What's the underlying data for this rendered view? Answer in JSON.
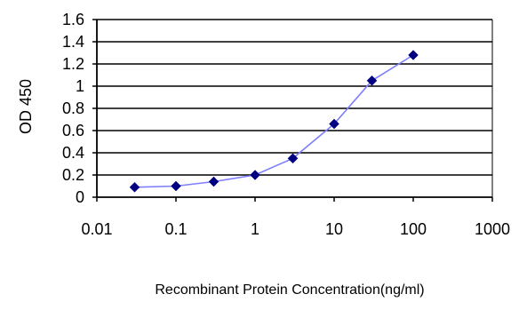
{
  "chart_data": {
    "type": "line",
    "title": "",
    "xlabel": "Recombinant Protein Concentration(ng/ml)",
    "ylabel": "OD 450",
    "x_scale": "log",
    "xlim": [
      0.01,
      1000
    ],
    "ylim": [
      0,
      1.6
    ],
    "grid": "horizontal",
    "x_ticks": [
      "0.01",
      "0.1",
      "1",
      "10",
      "100",
      "1000"
    ],
    "y_ticks": [
      "0",
      "0.2",
      "0.4",
      "0.6",
      "0.8",
      "1",
      "1.2",
      "1.4",
      "1.6"
    ],
    "series": [
      {
        "x": [
          0.03,
          0.1,
          0.3,
          1,
          3,
          10,
          30,
          100
        ],
        "y": [
          0.09,
          0.1,
          0.14,
          0.2,
          0.35,
          0.66,
          1.05,
          1.28
        ]
      }
    ],
    "colors": {
      "line": "#7f7fff",
      "marker": "#000080",
      "grid": "#000000",
      "plot_bg": "#ffffff"
    }
  }
}
